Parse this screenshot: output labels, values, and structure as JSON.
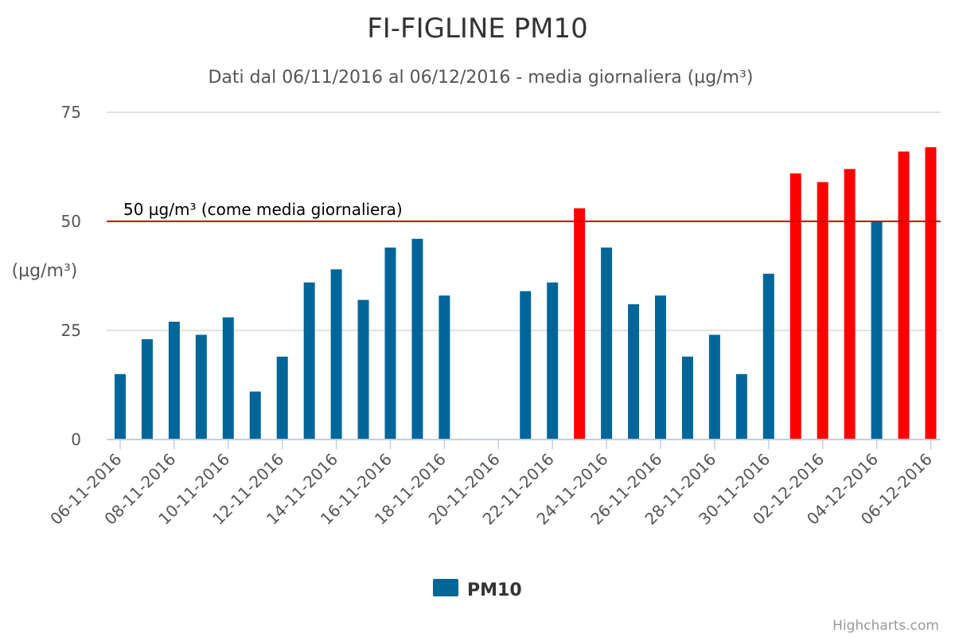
{
  "chart_data": {
    "type": "bar",
    "title": "FI-FIGLINE PM10",
    "subtitle": "Dati dal 06/11/2016 al 06/12/2016 - media giornaliera (µg/m³)",
    "ylabel": "(µg/m³)",
    "ylim": [
      0,
      75
    ],
    "yticks": [
      0,
      25,
      50,
      75
    ],
    "grid": true,
    "legend_position": "bottom-center",
    "categories": [
      "06-11-2016",
      "07-11-2016",
      "08-11-2016",
      "09-11-2016",
      "10-11-2016",
      "11-11-2016",
      "12-11-2016",
      "13-11-2016",
      "14-11-2016",
      "15-11-2016",
      "16-11-2016",
      "17-11-2016",
      "18-11-2016",
      "19-11-2016",
      "20-11-2016",
      "21-11-2016",
      "22-11-2016",
      "23-11-2016",
      "24-11-2016",
      "25-11-2016",
      "26-11-2016",
      "27-11-2016",
      "28-11-2016",
      "29-11-2016",
      "30-11-2016",
      "01-12-2016",
      "02-12-2016",
      "03-12-2016",
      "04-12-2016",
      "05-12-2016",
      "06-12-2016"
    ],
    "xtick_labels": [
      "06-11-2016",
      "08-11-2016",
      "10-11-2016",
      "12-11-2016",
      "14-11-2016",
      "16-11-2016",
      "18-11-2016",
      "20-11-2016",
      "22-11-2016",
      "24-11-2016",
      "26-11-2016",
      "28-11-2016",
      "30-11-2016",
      "02-12-2016",
      "04-12-2016",
      "06-12-2016"
    ],
    "series": [
      {
        "name": "PM10",
        "color": "#006699",
        "exceed_color": "#ff0000",
        "values": [
          15,
          23,
          27,
          24,
          28,
          11,
          19,
          36,
          39,
          32,
          44,
          46,
          33,
          null,
          null,
          34,
          36,
          53,
          44,
          31,
          33,
          19,
          24,
          15,
          38,
          61,
          59,
          62,
          50,
          66,
          67
        ]
      }
    ],
    "threshold": {
      "value": 50,
      "label": "50 µg/m³ (come media giornaliera)",
      "color": "#cc0000"
    },
    "credits": "Highcharts.com"
  }
}
